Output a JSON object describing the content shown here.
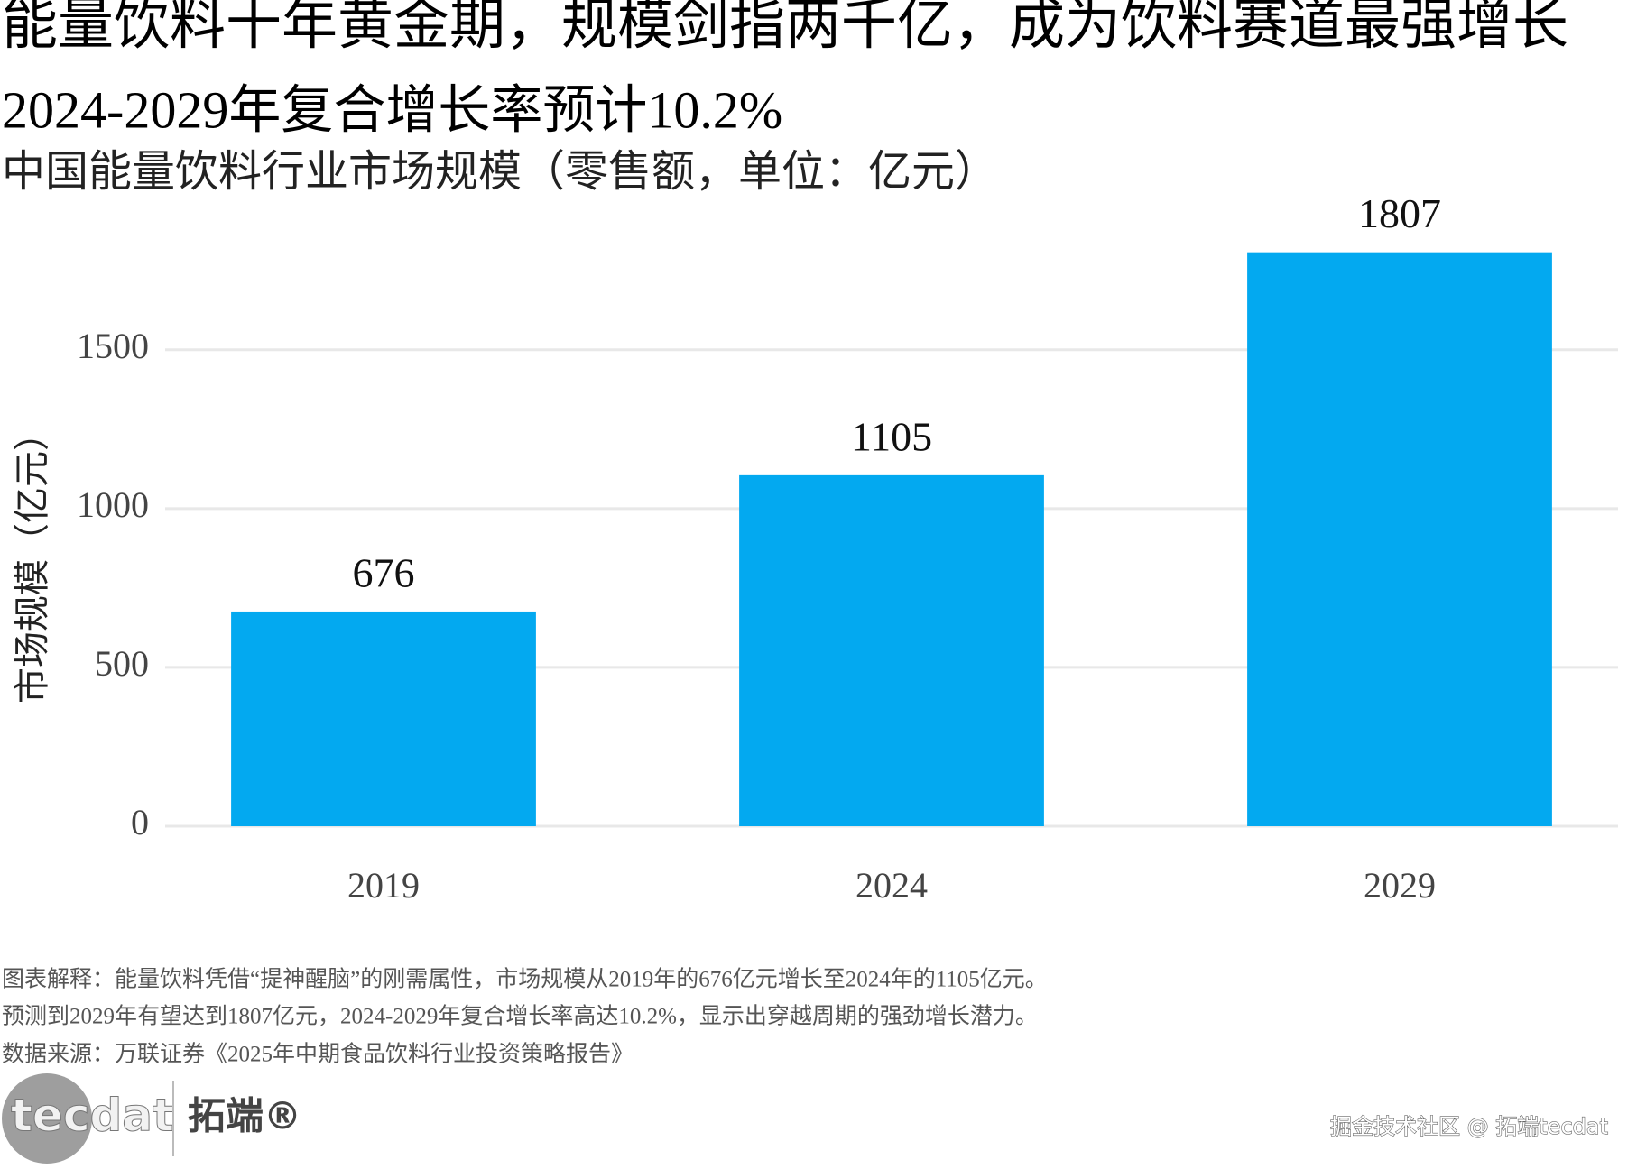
{
  "chart_data": {
    "type": "bar",
    "title": "能量饮料十年黄金期，规模剑指两千亿，成为饮料赛道最强增长",
    "title_line2": "2024-2029年复合增长率预计10.2%",
    "subtitle": "中国能量饮料行业市场规模（零售额，单位：亿元）",
    "y_label": "市场规模（亿元）",
    "categories": [
      "2019",
      "2024",
      "2029"
    ],
    "values": [
      676,
      1105,
      1807
    ],
    "color": "#03a9f0",
    "ylim": [
      0,
      1860
    ],
    "yticks": [
      0,
      500,
      1000,
      1500
    ],
    "grid": true,
    "caption": [
      "图表解释：能量饮料凭借“提神醒脑”的刚需属性，市场规模从2019年的676亿元增长至2024年的1105亿元。",
      "预测到2029年有望达到1807亿元，2024-2029年复合增长率高达10.2%，显示出穿越周期的强劲增长潜力。",
      "数据来源：万联证券《2025年中期食品饮料行业投资策略报告》"
    ]
  },
  "branding": {
    "logo": "tecdat",
    "brand": "拓端®",
    "watermark": "掘金技术社区 @ 拓端tecdat"
  }
}
